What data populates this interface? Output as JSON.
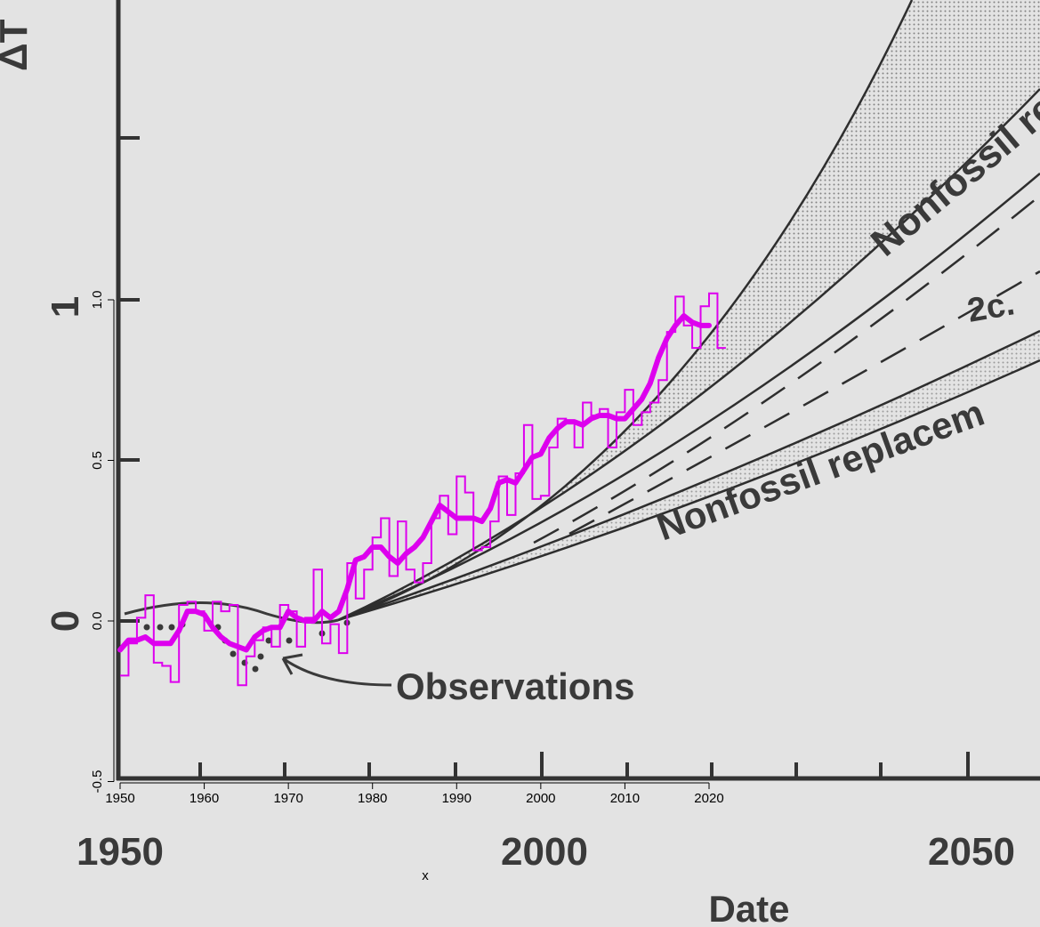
{
  "chart_data": [
    {
      "type": "line",
      "title": "",
      "xlabel": "Date",
      "ylabel": "ΔT",
      "xlim": [
        1950,
        2100
      ],
      "ylim": [
        -0.5,
        1.5
      ],
      "x_tick_labels": [
        "1950",
        "2000",
        "2050"
      ],
      "y_tick_labels": [
        "0",
        "1"
      ],
      "annotations": [
        "Observations",
        "Nonfossil re",
        "2c.",
        "Nonfossil replacem"
      ],
      "grid": false,
      "colors": {
        "curves": "#2e2e2e",
        "shading": "#9a9a9a"
      },
      "scenario_curves_note": "scanned projection curves fanning out from about 1975"
    },
    {
      "type": "line",
      "xlabel": "x",
      "ylabel": "",
      "xlim": [
        1950,
        2020
      ],
      "ylim": [
        -0.5,
        1.0
      ],
      "x_ticks": [
        1950,
        1960,
        1970,
        1980,
        1990,
        2000,
        2010,
        2020
      ],
      "y_ticks": [
        "-0.5",
        "0.0",
        "0.5",
        "1.0"
      ],
      "color": "#dd00ee",
      "series": [
        {
          "style": "step",
          "x": [
            1950,
            1951,
            1952,
            1953,
            1954,
            1955,
            1956,
            1957,
            1958,
            1959,
            1960,
            1961,
            1962,
            1963,
            1964,
            1965,
            1966,
            1967,
            1968,
            1969,
            1970,
            1971,
            1972,
            1973,
            1974,
            1975,
            1976,
            1977,
            1978,
            1979,
            1980,
            1981,
            1982,
            1983,
            1984,
            1985,
            1986,
            1987,
            1988,
            1989,
            1990,
            1991,
            1992,
            1993,
            1994,
            1995,
            1996,
            1997,
            1998,
            1999,
            2000,
            2001,
            2002,
            2003,
            2004,
            2005,
            2006,
            2007,
            2008,
            2009,
            2010,
            2011,
            2012,
            2013,
            2014,
            2015,
            2016,
            2017,
            2018,
            2019,
            2020,
            2021
          ],
          "y": [
            -0.17,
            -0.07,
            0.01,
            0.08,
            -0.13,
            -0.14,
            -0.19,
            0.05,
            0.06,
            0.03,
            -0.03,
            0.06,
            0.03,
            0.05,
            -0.2,
            -0.11,
            -0.06,
            -0.02,
            -0.08,
            0.05,
            0.03,
            -0.08,
            0.01,
            0.16,
            -0.07,
            -0.01,
            -0.1,
            0.18,
            0.07,
            0.16,
            0.26,
            0.32,
            0.14,
            0.31,
            0.16,
            0.12,
            0.18,
            0.32,
            0.39,
            0.27,
            0.45,
            0.4,
            0.22,
            0.23,
            0.31,
            0.45,
            0.33,
            0.46,
            0.61,
            0.38,
            0.39,
            0.54,
            0.63,
            0.62,
            0.54,
            0.68,
            0.64,
            0.66,
            0.54,
            0.65,
            0.72,
            0.61,
            0.65,
            0.68,
            0.75,
            0.9,
            1.01,
            0.92,
            0.85,
            0.98,
            1.02,
            0.85
          ]
        },
        {
          "style": "smooth",
          "x": [
            1950,
            1951,
            1952,
            1953,
            1954,
            1955,
            1956,
            1957,
            1958,
            1959,
            1960,
            1961,
            1962,
            1963,
            1964,
            1965,
            1966,
            1967,
            1968,
            1969,
            1970,
            1971,
            1972,
            1973,
            1974,
            1975,
            1976,
            1977,
            1978,
            1979,
            1980,
            1981,
            1982,
            1983,
            1984,
            1985,
            1986,
            1987,
            1988,
            1989,
            1990,
            1991,
            1992,
            1993,
            1994,
            1995,
            1996,
            1997,
            1998,
            1999,
            2000,
            2001,
            2002,
            2003,
            2004,
            2005,
            2006,
            2007,
            2008,
            2009,
            2010,
            2011,
            2012,
            2013,
            2014,
            2015,
            2016,
            2017,
            2018,
            2019,
            2020
          ],
          "y": [
            -0.09,
            -0.06,
            -0.06,
            -0.05,
            -0.07,
            -0.07,
            -0.07,
            -0.03,
            0.03,
            0.03,
            0.02,
            -0.02,
            -0.05,
            -0.07,
            -0.08,
            -0.09,
            -0.05,
            -0.03,
            -0.02,
            -0.02,
            0.03,
            0.01,
            0.0,
            0.0,
            0.03,
            0.01,
            0.03,
            0.1,
            0.19,
            0.2,
            0.23,
            0.23,
            0.2,
            0.18,
            0.21,
            0.23,
            0.26,
            0.31,
            0.36,
            0.34,
            0.32,
            0.32,
            0.32,
            0.31,
            0.35,
            0.43,
            0.44,
            0.43,
            0.47,
            0.51,
            0.52,
            0.57,
            0.6,
            0.62,
            0.62,
            0.61,
            0.63,
            0.64,
            0.64,
            0.63,
            0.63,
            0.66,
            0.69,
            0.74,
            0.82,
            0.88,
            0.92,
            0.95,
            0.93,
            0.92,
            0.92
          ]
        }
      ]
    }
  ]
}
